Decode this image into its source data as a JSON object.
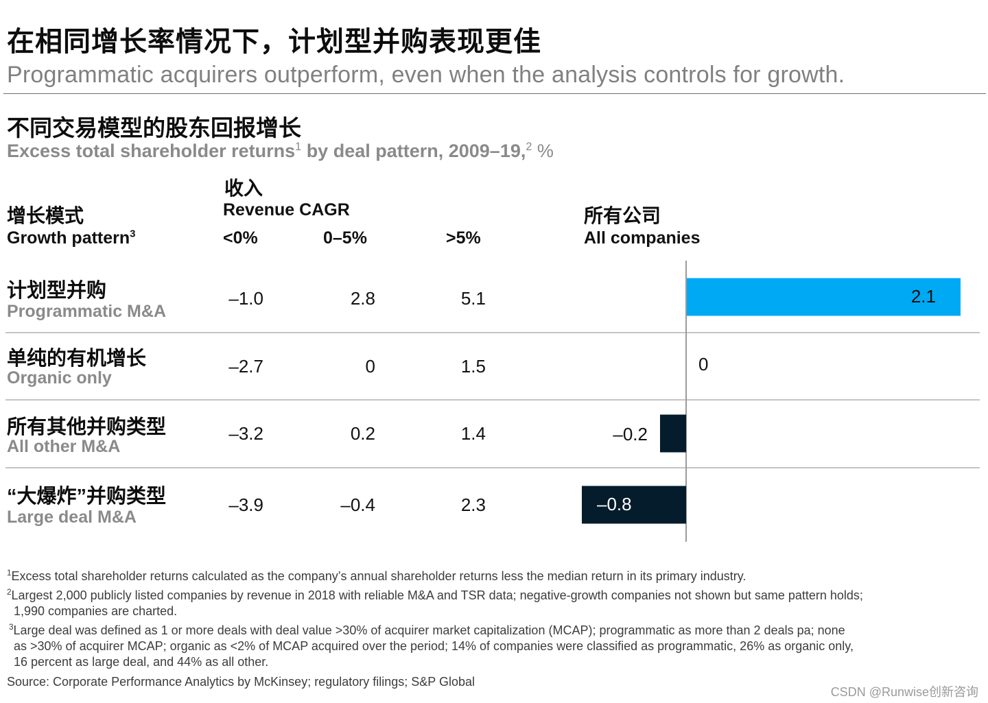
{
  "title_cn": "在相同增长率情况下，计划型并购表现更佳",
  "title_en": "Programmatic acquirers outperform, even when the analysis controls for growth.",
  "subtitle_cn": "不同交易模型的股东回报增长",
  "subtitle_en_main": "Excess total shareholder returns",
  "subtitle_en_sup1": "1",
  "subtitle_en_mid": " by deal pattern, 2009–19,",
  "subtitle_en_sup2": "2",
  "subtitle_en_unit": " %",
  "headers": {
    "growth_cn": "增长模式",
    "growth_en": "Growth pattern",
    "growth_sup": "3",
    "revenue_cn": "收入",
    "revenue_en": "Revenue CAGR",
    "col_lt0": "<0%",
    "col_0_5": "0–5%",
    "col_gt5": ">5%",
    "all_cn": "所有公司",
    "all_en": "All companies"
  },
  "rows": [
    {
      "cn": "计划型并购",
      "en": "Programmatic M&A",
      "lt0": "–1.0",
      "mid": "2.8",
      "gt5": "5.1",
      "all_label": "2.1"
    },
    {
      "cn": "单纯的有机增长",
      "en": "Organic only",
      "lt0": "–2.7",
      "mid": "0",
      "gt5": "1.5",
      "all_label": "0"
    },
    {
      "cn": "所有其他并购类型",
      "en": "All other M&A",
      "lt0": "–3.2",
      "mid": "0.2",
      "gt5": "1.4",
      "all_label": "–0.2"
    },
    {
      "cn": "“大爆炸”并购类型",
      "en": "Large deal M&A",
      "lt0": "–3.9",
      "mid": "–0.4",
      "gt5": "2.3",
      "all_label": "–0.8"
    }
  ],
  "footnotes": {
    "f1_num": "1",
    "f1": "Excess total shareholder returns calculated as the company’s annual shareholder returns less the median return in its primary industry.",
    "f2_num": "2",
    "f2a": "Largest 2,000 publicly listed companies by revenue in 2018 with reliable M&A and TSR data; negative-growth companies not shown but same pattern holds;",
    "f2b": "1,990 companies are charted.",
    "f3_num": "3",
    "f3a": "Large deal was defined as 1 or more deals with deal value >30% of acquirer market capitalization (MCAP); programmatic as more than 2 deals pa; none",
    "f3b": "as >30% of acquirer MCAP; organic as <2% of MCAP acquired over the period; 14% of companies were classified as programmatic, 26% as organic only,",
    "f3c": "16 percent as large deal, and 44% as all other.",
    "source": "Source: Corporate Performance Analytics by McKinsey; regulatory filings; S&P Global"
  },
  "watermark": "CSDN @Runwise创新咨询",
  "colors": {
    "positive": "#00a9f4",
    "negative": "#051c2c",
    "axis": "#9a9a9a",
    "divider": "#c4c4c4"
  },
  "chart_data": {
    "type": "bar",
    "orientation": "horizontal",
    "title": "All companies",
    "categories": [
      "Programmatic M&A",
      "Organic only",
      "All other M&A",
      "Large deal M&A"
    ],
    "values": [
      2.1,
      0,
      -0.2,
      -0.8
    ],
    "labels": [
      "2.1",
      "0",
      "–0.2",
      "–0.8"
    ],
    "xlim": [
      -0.8,
      2.1
    ]
  }
}
